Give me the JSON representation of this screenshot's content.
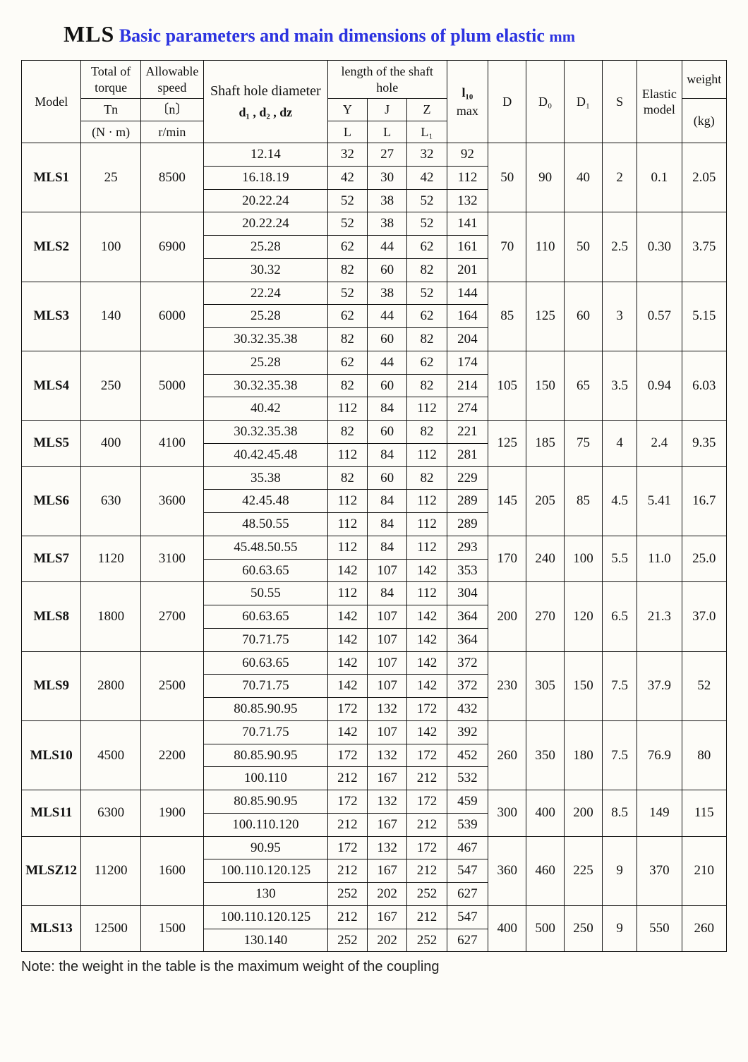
{
  "title": {
    "prefix": "MLS",
    "main": " Basic parameters and main dimensions of plum elastic ",
    "unit": "mm"
  },
  "note": "Note: the weight in the table is the maximum weight of the coupling",
  "header": {
    "model": "Model",
    "torque_top": "Total of torque",
    "torque_sym": "Tn",
    "torque_unit": "(N · m)",
    "speed_top": "Allowable speed",
    "speed_sym": "〔n〕",
    "speed_unit": "r/min",
    "dia_top": "Shaft hole diameter",
    "dia_sub": "d₁ , d₂ , dz",
    "len_top": "length of the shaft hole",
    "Y": "Y",
    "J": "J",
    "Z": "Z",
    "L": "L",
    "L1": "L₁",
    "l10_top": "l₁₀",
    "l10_sub": "max",
    "D": "D",
    "Do": "D₀",
    "D1": "D₁",
    "S": "S",
    "elastic": "Elastic model",
    "weight_top": "weight",
    "weight_unit": "(kg)"
  },
  "models": [
    {
      "name": "MLS1",
      "torque": "25",
      "speed": "8500",
      "D": "50",
      "Do": "90",
      "D1": "40",
      "S": "2",
      "elastic": "0.1",
      "weight": "2.05",
      "rows": [
        {
          "dia": "12.14",
          "Y": "32",
          "J": "27",
          "Z": "32",
          "l10": "92"
        },
        {
          "dia": "16.18.19",
          "Y": "42",
          "J": "30",
          "Z": "42",
          "l10": "112"
        },
        {
          "dia": "20.22.24",
          "Y": "52",
          "J": "38",
          "Z": "52",
          "l10": "132"
        }
      ]
    },
    {
      "name": "MLS2",
      "torque": "100",
      "speed": "6900",
      "D": "70",
      "Do": "110",
      "D1": "50",
      "S": "2.5",
      "elastic": "0.30",
      "weight": "3.75",
      "rows": [
        {
          "dia": "20.22.24",
          "Y": "52",
          "J": "38",
          "Z": "52",
          "l10": "141"
        },
        {
          "dia": "25.28",
          "Y": "62",
          "J": "44",
          "Z": "62",
          "l10": "161"
        },
        {
          "dia": "30.32",
          "Y": "82",
          "J": "60",
          "Z": "82",
          "l10": "201"
        }
      ]
    },
    {
      "name": "MLS3",
      "torque": "140",
      "speed": "6000",
      "D": "85",
      "Do": "125",
      "D1": "60",
      "S": "3",
      "elastic": "0.57",
      "weight": "5.15",
      "rows": [
        {
          "dia": "22.24",
          "Y": "52",
          "J": "38",
          "Z": "52",
          "l10": "144"
        },
        {
          "dia": "25.28",
          "Y": "62",
          "J": "44",
          "Z": "62",
          "l10": "164"
        },
        {
          "dia": "30.32.35.38",
          "Y": "82",
          "J": "60",
          "Z": "82",
          "l10": "204"
        }
      ]
    },
    {
      "name": "MLS4",
      "torque": "250",
      "speed": "5000",
      "D": "105",
      "Do": "150",
      "D1": "65",
      "S": "3.5",
      "elastic": "0.94",
      "weight": "6.03",
      "rows": [
        {
          "dia": "25.28",
          "Y": "62",
          "J": "44",
          "Z": "62",
          "l10": "174"
        },
        {
          "dia": "30.32.35.38",
          "Y": "82",
          "J": "60",
          "Z": "82",
          "l10": "214"
        },
        {
          "dia": "40.42",
          "Y": "112",
          "J": "84",
          "Z": "112",
          "l10": "274"
        }
      ]
    },
    {
      "name": "MLS5",
      "torque": "400",
      "speed": "4100",
      "D": "125",
      "Do": "185",
      "D1": "75",
      "S": "4",
      "elastic": "2.4",
      "weight": "9.35",
      "rows": [
        {
          "dia": "30.32.35.38",
          "Y": "82",
          "J": "60",
          "Z": "82",
          "l10": "221"
        },
        {
          "dia": "40.42.45.48",
          "Y": "112",
          "J": "84",
          "Z": "112",
          "l10": "281"
        }
      ]
    },
    {
      "name": "MLS6",
      "torque": "630",
      "speed": "3600",
      "D": "145",
      "Do": "205",
      "D1": "85",
      "S": "4.5",
      "elastic": "5.41",
      "weight": "16.7",
      "rows": [
        {
          "dia": "35.38",
          "Y": "82",
          "J": "60",
          "Z": "82",
          "l10": "229"
        },
        {
          "dia": "42.45.48",
          "Y": "112",
          "J": "84",
          "Z": "112",
          "l10": "289"
        },
        {
          "dia": "48.50.55",
          "Y": "112",
          "J": "84",
          "Z": "112",
          "l10": "289"
        }
      ]
    },
    {
      "name": "MLS7",
      "torque": "1120",
      "speed": "3100",
      "D": "170",
      "Do": "240",
      "D1": "100",
      "S": "5.5",
      "elastic": "11.0",
      "weight": "25.0",
      "rows": [
        {
          "dia": "45.48.50.55",
          "Y": "112",
          "J": "84",
          "Z": "112",
          "l10": "293"
        },
        {
          "dia": "60.63.65",
          "Y": "142",
          "J": "107",
          "Z": "142",
          "l10": "353"
        }
      ]
    },
    {
      "name": "MLS8",
      "torque": "1800",
      "speed": "2700",
      "D": "200",
      "Do": "270",
      "D1": "120",
      "S": "6.5",
      "elastic": "21.3",
      "weight": "37.0",
      "rows": [
        {
          "dia": "50.55",
          "Y": "112",
          "J": "84",
          "Z": "112",
          "l10": "304"
        },
        {
          "dia": "60.63.65",
          "Y": "142",
          "J": "107",
          "Z": "142",
          "l10": "364"
        },
        {
          "dia": "70.71.75",
          "Y": "142",
          "J": "107",
          "Z": "142",
          "l10": "364"
        }
      ]
    },
    {
      "name": "MLS9",
      "torque": "2800",
      "speed": "2500",
      "D": "230",
      "Do": "305",
      "D1": "150",
      "S": "7.5",
      "elastic": "37.9",
      "weight": "52",
      "rows": [
        {
          "dia": "60.63.65",
          "Y": "142",
          "J": "107",
          "Z": "142",
          "l10": "372"
        },
        {
          "dia": "70.71.75",
          "Y": "142",
          "J": "107",
          "Z": "142",
          "l10": "372"
        },
        {
          "dia": "80.85.90.95",
          "Y": "172",
          "J": "132",
          "Z": "172",
          "l10": "432"
        }
      ]
    },
    {
      "name": "MLS10",
      "torque": "4500",
      "speed": "2200",
      "D": "260",
      "Do": "350",
      "D1": "180",
      "S": "7.5",
      "elastic": "76.9",
      "weight": "80",
      "rows": [
        {
          "dia": "70.71.75",
          "Y": "142",
          "J": "107",
          "Z": "142",
          "l10": "392"
        },
        {
          "dia": "80.85.90.95",
          "Y": "172",
          "J": "132",
          "Z": "172",
          "l10": "452"
        },
        {
          "dia": "100.110",
          "Y": "212",
          "J": "167",
          "Z": "212",
          "l10": "532"
        }
      ]
    },
    {
      "name": "MLS11",
      "torque": "6300",
      "speed": "1900",
      "D": "300",
      "Do": "400",
      "D1": "200",
      "S": "8.5",
      "elastic": "149",
      "weight": "115",
      "rows": [
        {
          "dia": "80.85.90.95",
          "diaClass": "small",
          "Y": "172",
          "J": "132",
          "Z": "172",
          "l10": "459"
        },
        {
          "dia": "100.110.120",
          "Y": "212",
          "J": "167",
          "Z": "212",
          "l10": "539"
        }
      ]
    },
    {
      "name": "MLSZ12",
      "torque": "11200",
      "speed": "1600",
      "D": "360",
      "Do": "460",
      "D1": "225",
      "S": "9",
      "elastic": "370",
      "weight": "210",
      "rows": [
        {
          "dia": "90.95",
          "Y": "172",
          "J": "132",
          "Z": "172",
          "l10": "467"
        },
        {
          "dia": "100.110.120.125",
          "diaClass": "xsmall",
          "Y": "212",
          "J": "167",
          "Z": "212",
          "l10": "547"
        },
        {
          "dia": "130",
          "Y": "252",
          "J": "202",
          "Z": "252",
          "l10": "627"
        }
      ]
    },
    {
      "name": "MLS13",
      "torque": "12500",
      "speed": "1500",
      "D": "400",
      "Do": "500",
      "D1": "250",
      "S": "9",
      "elastic": "550",
      "weight": "260",
      "rows": [
        {
          "dia": "100.110.120.125",
          "diaClass": "xsmall",
          "Y": "212",
          "J": "167",
          "Z": "212",
          "l10": "547"
        },
        {
          "dia": "130.140",
          "Y": "252",
          "J": "202",
          "Z": "252",
          "l10": "627"
        }
      ]
    }
  ]
}
